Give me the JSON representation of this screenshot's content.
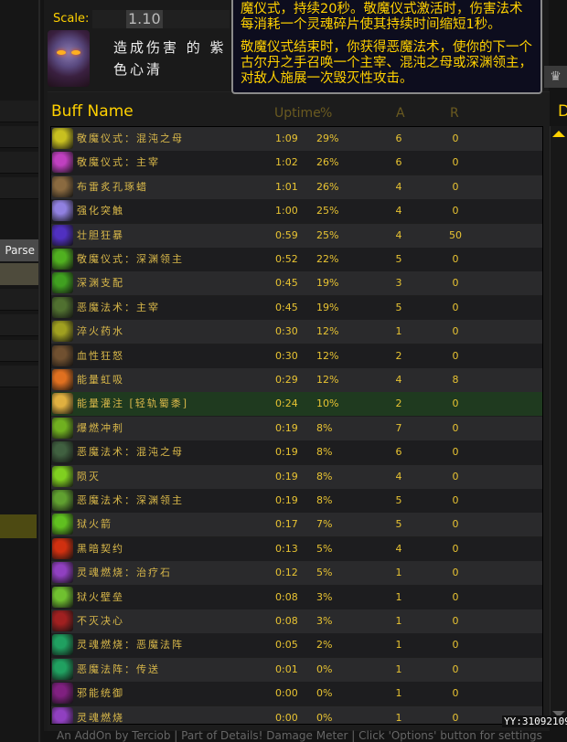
{
  "scale": {
    "label": "Scale:",
    "value": "1.10"
  },
  "player": {
    "name": "造成伤害 的 紫色心清"
  },
  "sidebar": {
    "parse_label": "Parse"
  },
  "columns": {
    "name": "Buff Name",
    "uptime": "Uptime",
    "pct": "%",
    "applied": "A",
    "refresh": "R",
    "extra": "D"
  },
  "tooltip": {
    "line1": "魔仪式，持续20秒。敬魔仪式激活时，伤害法术每消耗一个灵魂碎片使其持续时间缩短1秒。",
    "line2": "敬魔仪式结束时，你获得恶魔法术，使你的下一个古尔丹之手召唤一个主宰、混沌之母或深渊领主，对敌人施展一次毁灭性攻击。"
  },
  "rows": [
    {
      "name": "敬魔仪式：混沌之母",
      "uptime": "1:09",
      "pct": "29%",
      "a": "6",
      "r": "0",
      "icon": "ritual-yellow-icon",
      "color": "#c8c020"
    },
    {
      "name": "敬魔仪式：主宰",
      "uptime": "1:02",
      "pct": "26%",
      "a": "6",
      "r": "0",
      "icon": "ritual-purple-icon",
      "color": "#c040c0"
    },
    {
      "name": "布雷炙孔琢蜡",
      "uptime": "1:01",
      "pct": "26%",
      "a": "4",
      "r": "0",
      "icon": "candle-icon",
      "color": "#8a6a40"
    },
    {
      "name": "强化突触",
      "uptime": "1:00",
      "pct": "25%",
      "a": "4",
      "r": "0",
      "icon": "synapse-icon",
      "color": "#9080e0"
    },
    {
      "name": "壮胆狂暴",
      "uptime": "0:59",
      "pct": "25%",
      "a": "4",
      "r": "50",
      "icon": "frenzy-icon",
      "color": "#5030c0"
    },
    {
      "name": "敬魔仪式：深渊领主",
      "uptime": "0:52",
      "pct": "22%",
      "a": "5",
      "r": "0",
      "icon": "ritual-green-icon",
      "color": "#50b020"
    },
    {
      "name": "深渊支配",
      "uptime": "0:45",
      "pct": "19%",
      "a": "3",
      "r": "0",
      "icon": "abyss-icon",
      "color": "#40a020"
    },
    {
      "name": "恶魔法术：主宰",
      "uptime": "0:45",
      "pct": "19%",
      "a": "5",
      "r": "0",
      "icon": "demon-icon",
      "color": "#507030"
    },
    {
      "name": "淬火药水",
      "uptime": "0:30",
      "pct": "12%",
      "a": "1",
      "r": "0",
      "icon": "potion-icon",
      "color": "#a0a020"
    },
    {
      "name": "血性狂怒",
      "uptime": "0:30",
      "pct": "12%",
      "a": "2",
      "r": "0",
      "icon": "blood-fury-icon",
      "color": "#705030"
    },
    {
      "name": "能量虹吸",
      "uptime": "0:29",
      "pct": "12%",
      "a": "4",
      "r": "8",
      "icon": "siphon-icon",
      "color": "#e07020"
    },
    {
      "name": "能量灌注 [轻轨蜀黍]",
      "uptime": "0:24",
      "pct": "10%",
      "a": "2",
      "r": "0",
      "icon": "power-infusion-icon",
      "color": "#e0b040",
      "highlight": true
    },
    {
      "name": "爆燃冲刺",
      "uptime": "0:19",
      "pct": "8%",
      "a": "7",
      "r": "0",
      "icon": "dash-icon",
      "color": "#70b020"
    },
    {
      "name": "恶魔法术：混沌之母",
      "uptime": "0:19",
      "pct": "8%",
      "a": "6",
      "r": "0",
      "icon": "demon-chaos-icon",
      "color": "#406040"
    },
    {
      "name": "陨灭",
      "uptime": "0:19",
      "pct": "8%",
      "a": "4",
      "r": "0",
      "icon": "doom-icon",
      "color": "#80d020"
    },
    {
      "name": "恶魔法术：深渊领主",
      "uptime": "0:19",
      "pct": "8%",
      "a": "5",
      "r": "0",
      "icon": "demon-pit-icon",
      "color": "#60a030"
    },
    {
      "name": "狱火箭",
      "uptime": "0:17",
      "pct": "7%",
      "a": "5",
      "r": "0",
      "icon": "hellfire-arrow-icon",
      "color": "#60c020"
    },
    {
      "name": "黑暗契约",
      "uptime": "0:13",
      "pct": "5%",
      "a": "4",
      "r": "0",
      "icon": "dark-pact-icon",
      "color": "#d03010"
    },
    {
      "name": "灵魂燃烧：治疗石",
      "uptime": "0:12",
      "pct": "5%",
      "a": "1",
      "r": "0",
      "icon": "soulburn-icon",
      "color": "#9040c0"
    },
    {
      "name": "狱火壁垒",
      "uptime": "0:08",
      "pct": "3%",
      "a": "1",
      "r": "0",
      "icon": "bulwark-icon",
      "color": "#70c030"
    },
    {
      "name": "不灭决心",
      "uptime": "0:08",
      "pct": "3%",
      "a": "1",
      "r": "0",
      "icon": "resolve-icon",
      "color": "#a02020"
    },
    {
      "name": "灵魂燃烧：恶魔法阵",
      "uptime": "0:05",
      "pct": "2%",
      "a": "1",
      "r": "0",
      "icon": "circle-icon",
      "color": "#20a060"
    },
    {
      "name": "恶魔法阵：传送",
      "uptime": "0:01",
      "pct": "0%",
      "a": "1",
      "r": "0",
      "icon": "teleport-icon",
      "color": "#20a060"
    },
    {
      "name": "邪能统御",
      "uptime": "0:00",
      "pct": "0%",
      "a": "1",
      "r": "0",
      "icon": "fel-domination-icon",
      "color": "#802080"
    },
    {
      "name": "灵魂燃烧",
      "uptime": "0:00",
      "pct": "0%",
      "a": "1",
      "r": "0",
      "icon": "soulburn-icon",
      "color": "#9040c0"
    }
  ],
  "footer": "An AddOn by Terciob | Part of Details! Damage Meter | Click 'Options' button for settings",
  "watermark": "YY:31092109"
}
